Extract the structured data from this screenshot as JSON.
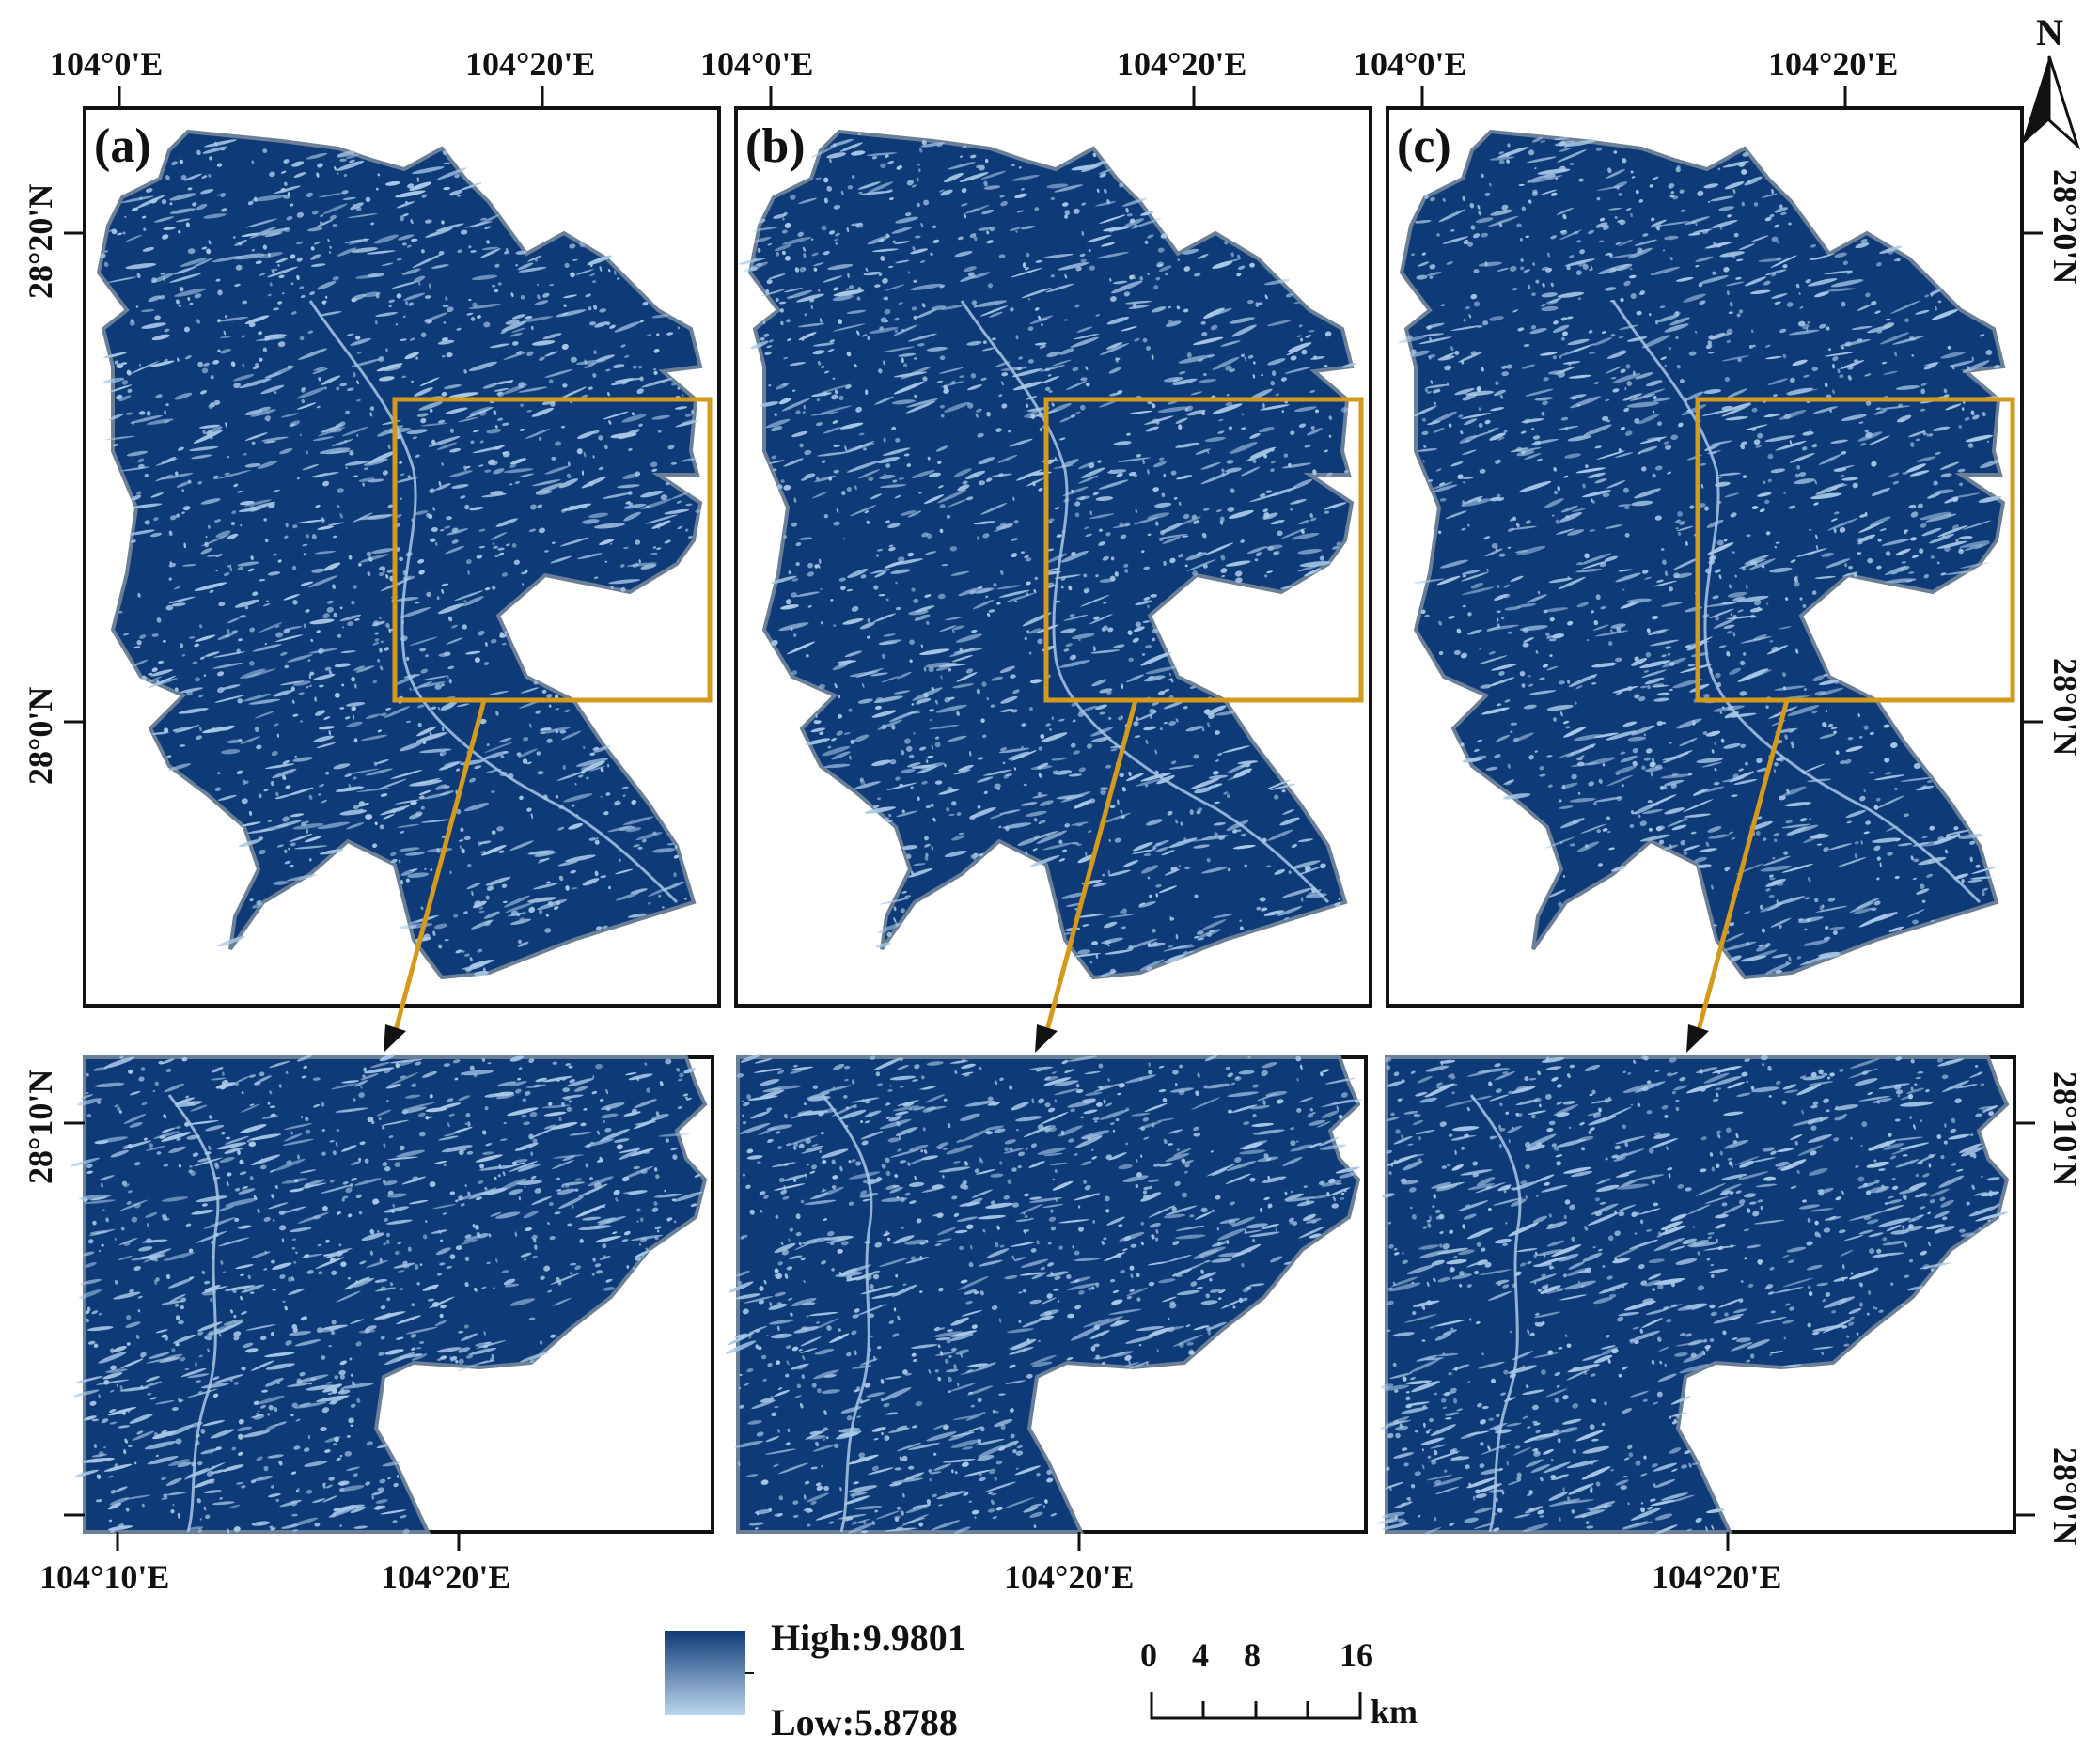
{
  "panels": [
    {
      "label": "(a)"
    },
    {
      "label": "(b)"
    },
    {
      "label": "(c)"
    }
  ],
  "top_axes": {
    "lon_labels": [
      "104°0'E",
      "104°20'E"
    ],
    "lat_labels": [
      "28°20'N",
      "28°0'N"
    ]
  },
  "bottom_axes": {
    "left_lon_labels": [
      "104°10'E",
      "104°20'E"
    ],
    "center_lon_label": "104°20'E",
    "right_lon_label": "104°20'E",
    "lat_labels": [
      "28°10'N",
      "28°0'N"
    ]
  },
  "north_arrow": {
    "label": "N"
  },
  "legend": {
    "high_label": "High:9.9801",
    "low_label": "Low:5.8788",
    "high_color": "#0f3a78",
    "low_color": "#bcd6ec"
  },
  "scale_bar": {
    "ticks": [
      "0",
      "4",
      "8",
      "16"
    ],
    "unit": "km"
  },
  "colors": {
    "map_fill": "#0f3a78",
    "speckle": "#a8c8e6",
    "outline": "#6b7f96",
    "callout": "#d49a1c"
  }
}
